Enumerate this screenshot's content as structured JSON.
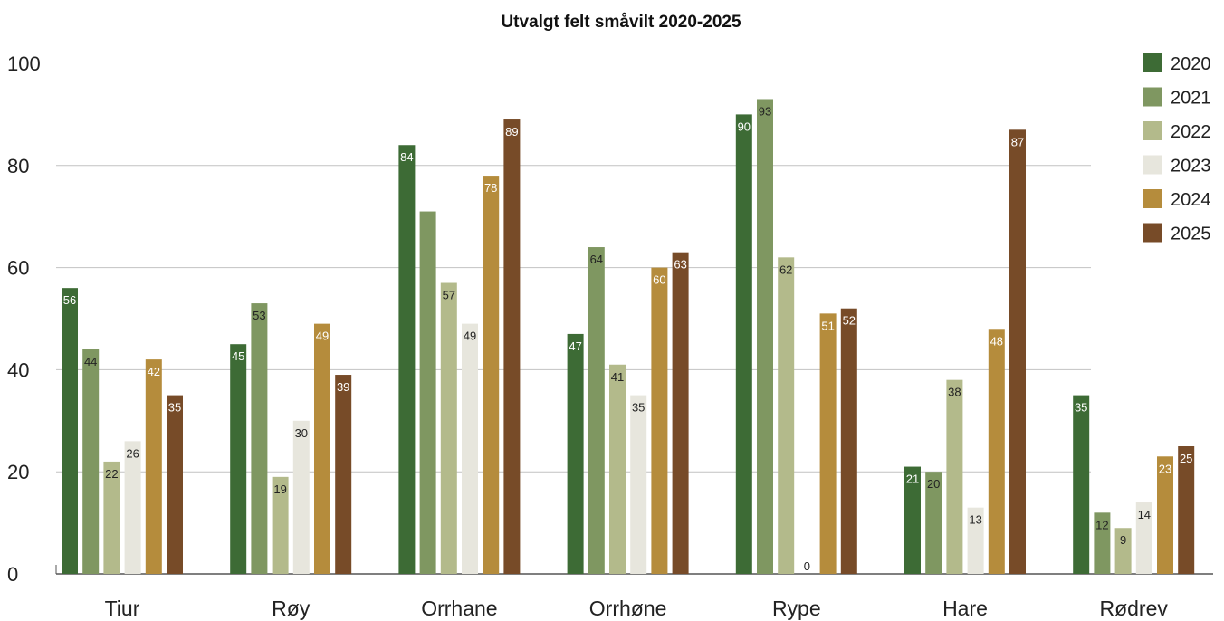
{
  "chart_data": {
    "type": "bar",
    "title": "Utvalgt felt småvilt 2020-2025",
    "xlabel": "",
    "ylabel": "",
    "ylim": [
      0,
      100
    ],
    "yticks": [
      0,
      20,
      40,
      60,
      80,
      100
    ],
    "grid": true,
    "legend_position": "top-right",
    "categories": [
      "Tiur",
      "Røy",
      "Orrhane",
      "Orrhøne",
      "Rype",
      "Hare",
      "Rødrev"
    ],
    "series": [
      {
        "name": "2020",
        "color": "#3d6b35",
        "label_color": "#ffffff",
        "values": [
          56,
          45,
          84,
          47,
          90,
          21,
          35
        ]
      },
      {
        "name": "2021",
        "color": "#7f9761",
        "label_color": "#222222",
        "values": [
          44,
          53,
          71,
          64,
          93,
          20,
          12
        ]
      },
      {
        "name": "2022",
        "color": "#b3ba8b",
        "label_color": "#222222",
        "values": [
          22,
          19,
          57,
          41,
          62,
          38,
          9
        ]
      },
      {
        "name": "2023",
        "color": "#e7e6dd",
        "label_color": "#222222",
        "values": [
          26,
          30,
          49,
          35,
          0,
          13,
          14
        ]
      },
      {
        "name": "2024",
        "color": "#b58c3c",
        "label_color": "#ffffff",
        "values": [
          42,
          49,
          78,
          60,
          51,
          48,
          23
        ]
      },
      {
        "name": "2025",
        "color": "#774b28",
        "label_color": "#ffffff",
        "values": [
          35,
          39,
          89,
          63,
          52,
          87,
          25
        ]
      }
    ],
    "data_labels": [
      [
        "56",
        "44",
        "22",
        "26",
        "42",
        "35"
      ],
      [
        "45",
        "53",
        "19",
        "30",
        "49",
        "39"
      ],
      [
        "84",
        "",
        "57",
        "49",
        "78",
        "89"
      ],
      [
        "47",
        "64",
        "41",
        "35",
        "60",
        "63"
      ],
      [
        "90",
        "93",
        "62",
        "0",
        "51",
        "52"
      ],
      [
        "21",
        "20",
        "38",
        "13",
        "48",
        "87"
      ],
      [
        "35",
        "12",
        "9",
        "14",
        "23",
        "25"
      ]
    ]
  }
}
